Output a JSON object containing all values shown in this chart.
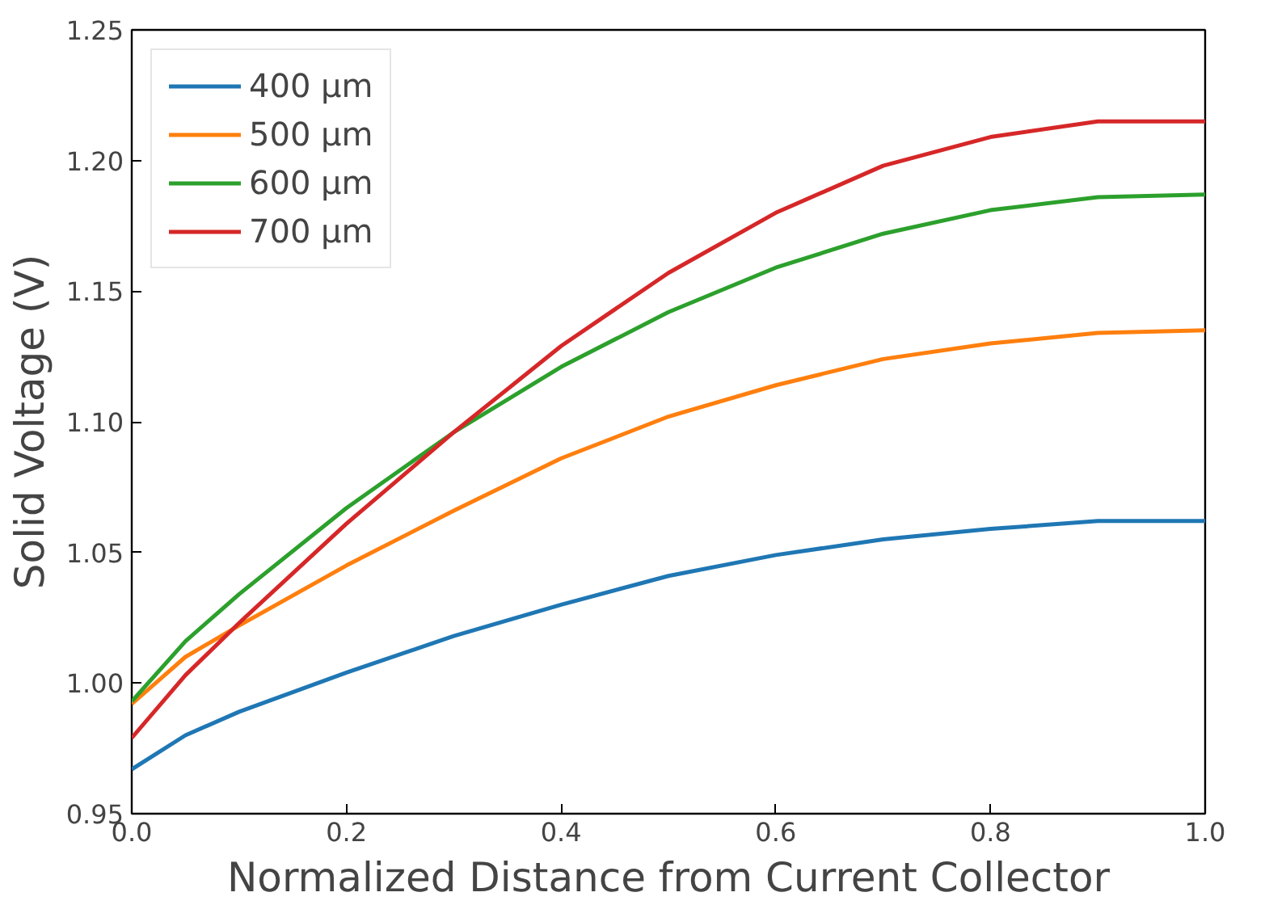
{
  "chart_data": {
    "type": "line",
    "xlabel": "Normalized Distance from Current Collector",
    "ylabel": "Solid Voltage (V)",
    "x": [
      0,
      0.05,
      0.1,
      0.2,
      0.3,
      0.4,
      0.5,
      0.6,
      0.7,
      0.8,
      0.9,
      1.0
    ],
    "xlim": [
      0,
      1
    ],
    "xticks": [
      {
        "value": 0,
        "label": "0.0"
      },
      0.2,
      0.4,
      0.6,
      0.8,
      {
        "value": 1,
        "label": "1.0"
      }
    ],
    "ylim": [
      0.95,
      1.25
    ],
    "yticks": [
      0.95,
      {
        "value": 1,
        "label": "1.00"
      },
      1.05,
      {
        "value": 1.1,
        "label": "1.10"
      },
      1.15,
      {
        "value": 1.2,
        "label": "1.20"
      },
      1.25
    ],
    "grid": false,
    "legend": "top left",
    "marker": "none",
    "line_style": "solid",
    "series": [
      {
        "name": "400 µm",
        "color": "#1f77b4",
        "values": [
          0.967,
          0.98,
          0.989,
          1.004,
          1.018,
          1.03,
          1.041,
          1.049,
          1.055,
          1.059,
          1.062,
          1.062
        ]
      },
      {
        "name": "500 µm",
        "color": "#ff7f0e",
        "values": [
          0.992,
          1.01,
          1.022,
          1.045,
          1.066,
          1.086,
          1.102,
          1.114,
          1.124,
          1.13,
          1.134,
          1.135
        ]
      },
      {
        "name": "600 µm",
        "color": "#2ca02c",
        "values": [
          0.993,
          1.016,
          1.034,
          1.067,
          1.096,
          1.121,
          1.142,
          1.159,
          1.172,
          1.181,
          1.186,
          1.187
        ]
      },
      {
        "name": "700 µm",
        "color": "#d62728",
        "values": [
          0.979,
          1.003,
          1.023,
          1.061,
          1.096,
          1.129,
          1.157,
          1.18,
          1.198,
          1.209,
          1.215,
          1.215
        ]
      }
    ]
  }
}
